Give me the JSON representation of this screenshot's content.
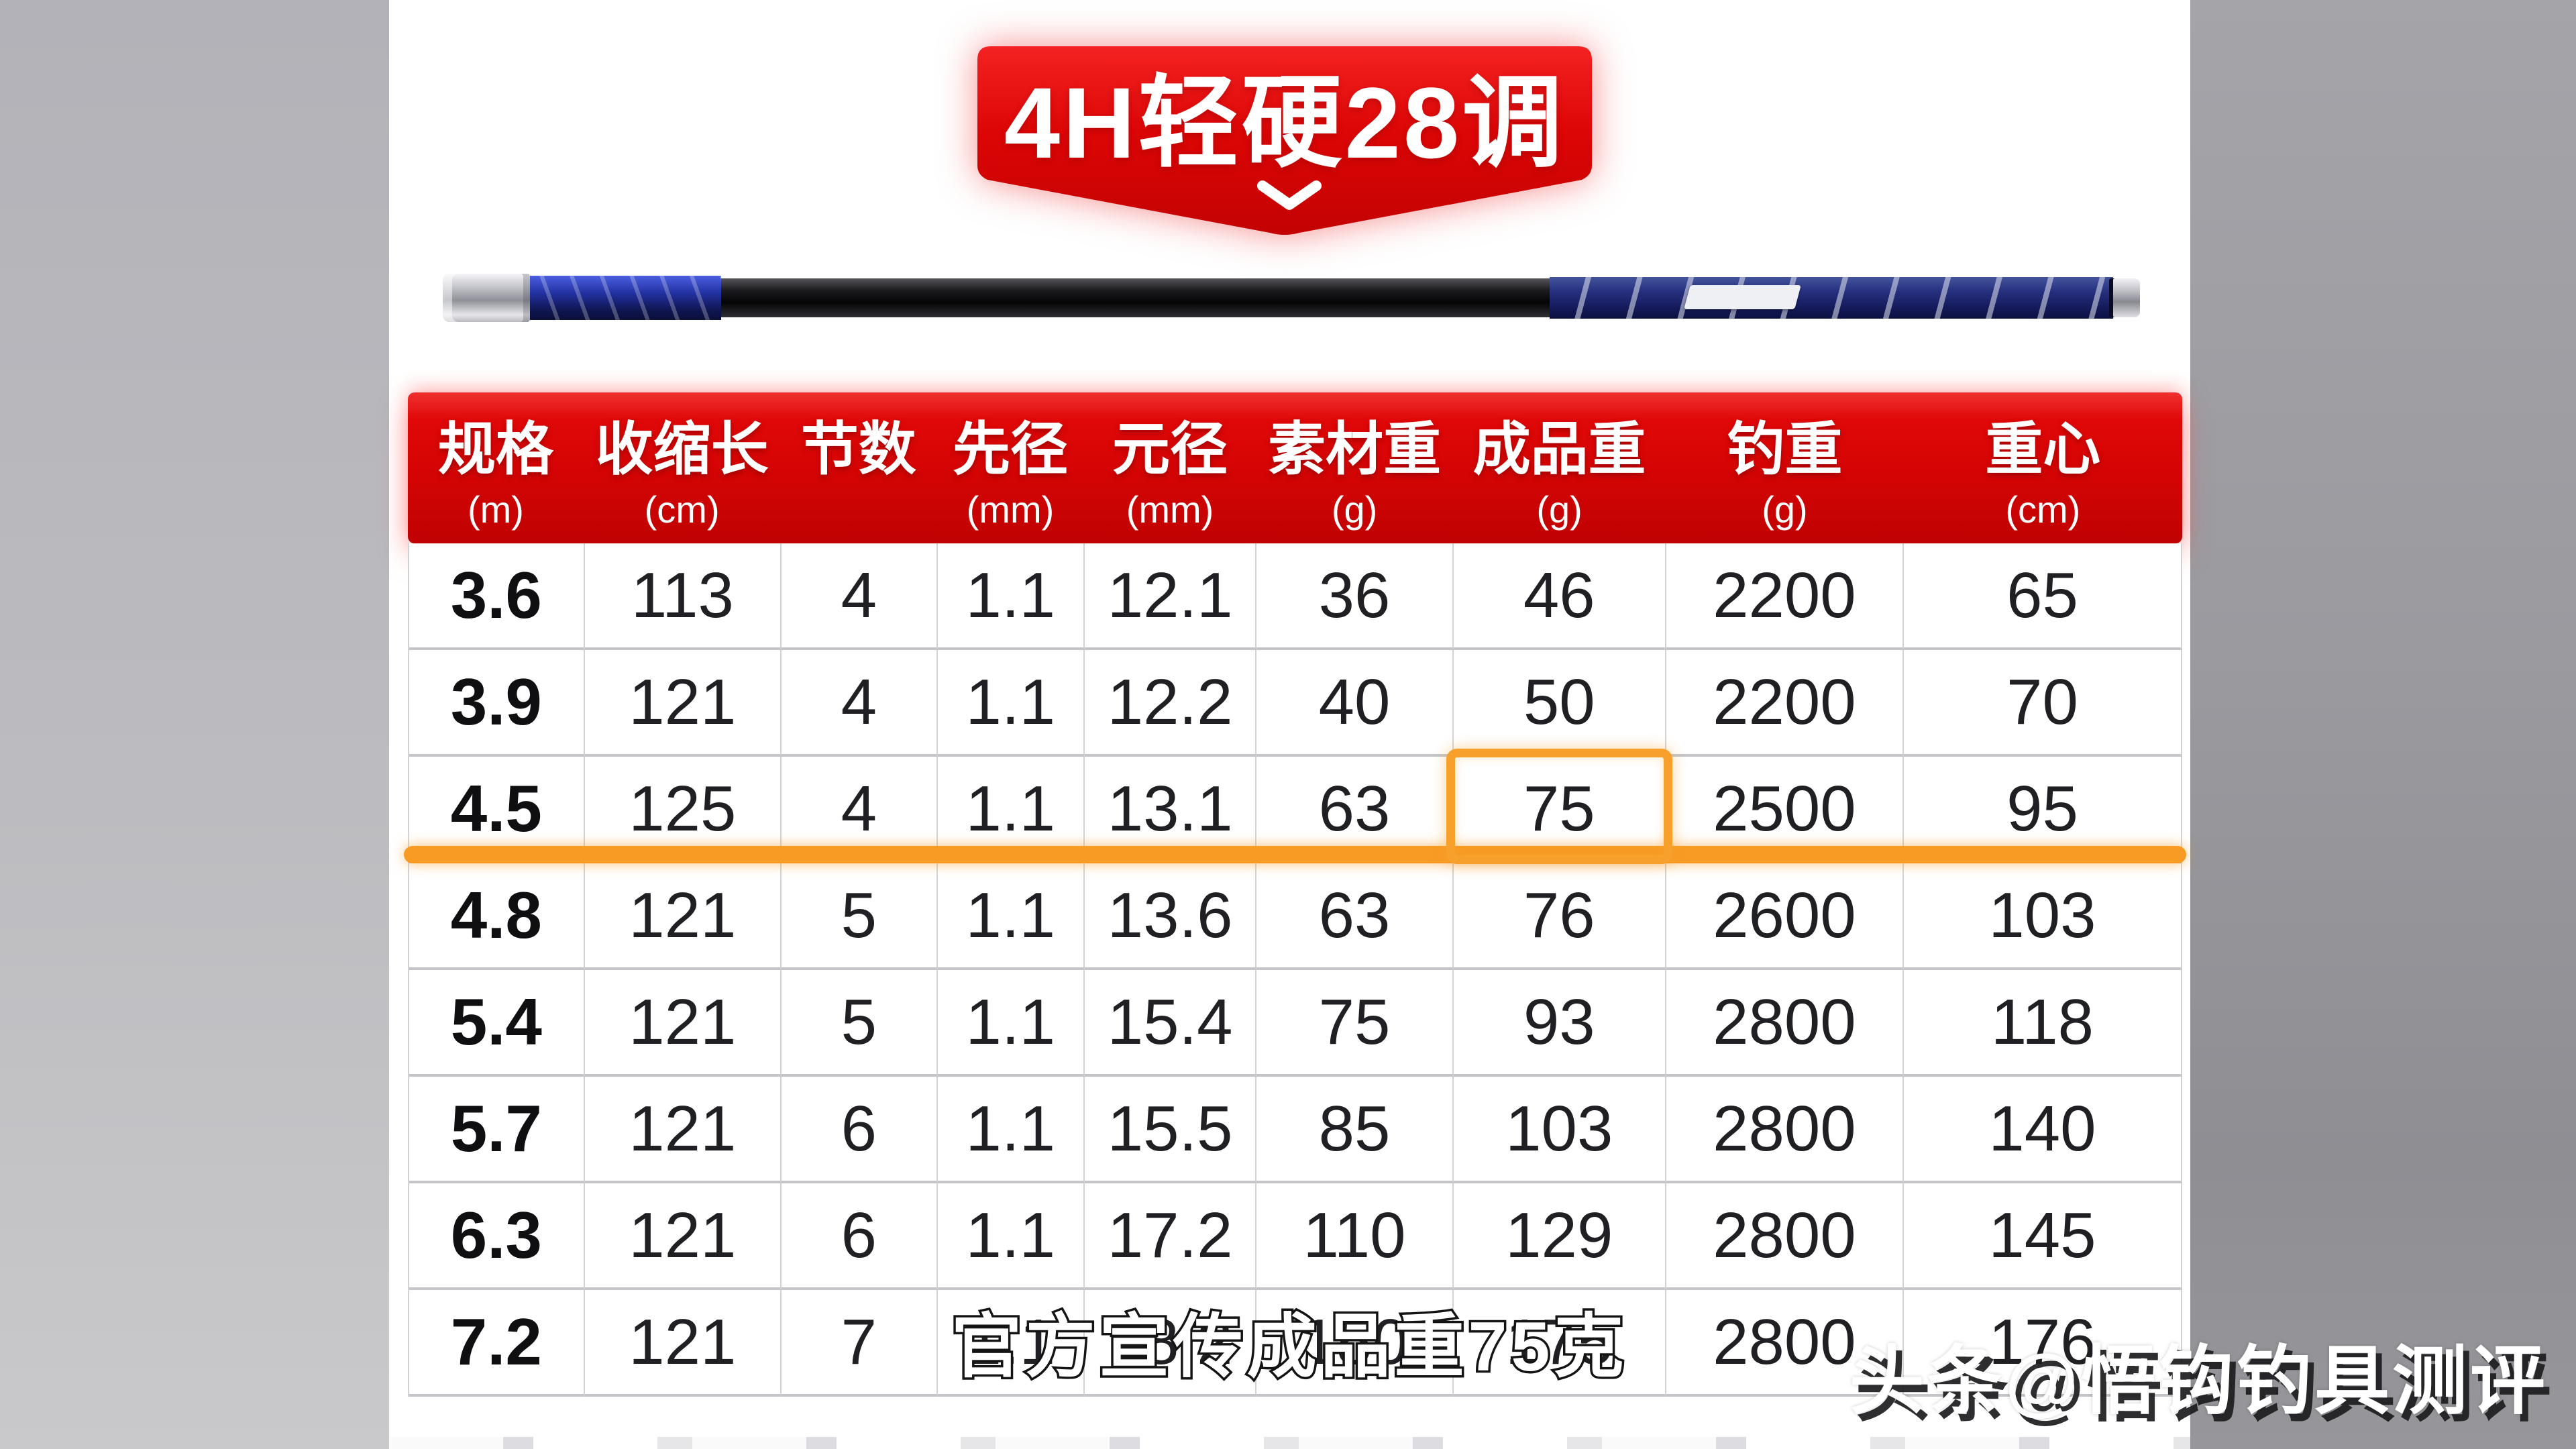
{
  "badge": {
    "title": "4H轻硬28调"
  },
  "table": {
    "columns": [
      {
        "key": "spec",
        "label": "规格",
        "unit": "(m)"
      },
      {
        "key": "closed-length",
        "label": "收缩长",
        "unit": "(cm)"
      },
      {
        "key": "sections",
        "label": "节数",
        "unit": ""
      },
      {
        "key": "tip-diameter",
        "label": "先径",
        "unit": "(mm)"
      },
      {
        "key": "butt-diameter",
        "label": "元径",
        "unit": "(mm)"
      },
      {
        "key": "blank-weight",
        "label": "素材重",
        "unit": "(g)"
      },
      {
        "key": "finished-weight",
        "label": "成品重",
        "unit": "(g)"
      },
      {
        "key": "load-weight",
        "label": "钓重",
        "unit": "(g)"
      },
      {
        "key": "balance-point",
        "label": "重心",
        "unit": "(cm)"
      }
    ],
    "rows": [
      [
        "3.6",
        "113",
        "4",
        "1.1",
        "12.1",
        "36",
        "46",
        "2200",
        "65"
      ],
      [
        "3.9",
        "121",
        "4",
        "1.1",
        "12.2",
        "40",
        "50",
        "2200",
        "70"
      ],
      [
        "4.5",
        "125",
        "4",
        "1.1",
        "13.1",
        "63",
        "75",
        "2500",
        "95"
      ],
      [
        "4.8",
        "121",
        "5",
        "1.1",
        "13.6",
        "63",
        "76",
        "2600",
        "103"
      ],
      [
        "5.4",
        "121",
        "5",
        "1.1",
        "15.4",
        "75",
        "93",
        "2800",
        "118"
      ],
      [
        "5.7",
        "121",
        "6",
        "1.1",
        "15.5",
        "85",
        "103",
        "2800",
        "140"
      ],
      [
        "6.3",
        "121",
        "6",
        "1.1",
        "17.2",
        "110",
        "129",
        "2800",
        "145"
      ],
      [
        "7.2",
        "121",
        "7",
        "1.1",
        "18.2",
        "150",
        "175",
        "2800",
        "176"
      ]
    ],
    "highlight": {
      "row_spec": "4.5",
      "column": "成品重",
      "value": "75"
    }
  },
  "overlay": {
    "subtitle": "官方宣传成品重75克",
    "watermark": "头条@悟钩钓具测评"
  },
  "colors": {
    "banner_red": "#e00808",
    "header_red_top": "#f03030",
    "header_red_bottom": "#bf0202",
    "highlight_orange": "#f79b24",
    "margin_gray": "#9a9a9f"
  },
  "chart_data": {
    "type": "table",
    "title": "4H轻硬28调",
    "columns": [
      "规格(m)",
      "收缩长(cm)",
      "节数",
      "先径(mm)",
      "元径(mm)",
      "素材重(g)",
      "成品重(g)",
      "钓重(g)",
      "重心(cm)"
    ],
    "rows": [
      [
        "3.6",
        "113",
        "4",
        "1.1",
        "12.1",
        "36",
        "46",
        "2200",
        "65"
      ],
      [
        "3.9",
        "121",
        "4",
        "1.1",
        "12.2",
        "40",
        "50",
        "2200",
        "70"
      ],
      [
        "4.5",
        "125",
        "4",
        "1.1",
        "13.1",
        "63",
        "75",
        "2500",
        "95"
      ],
      [
        "4.8",
        "121",
        "5",
        "1.1",
        "13.6",
        "63",
        "76",
        "2600",
        "103"
      ],
      [
        "5.4",
        "121",
        "5",
        "1.1",
        "15.4",
        "75",
        "93",
        "2800",
        "118"
      ],
      [
        "5.7",
        "121",
        "6",
        "1.1",
        "15.5",
        "85",
        "103",
        "2800",
        "140"
      ],
      [
        "6.3",
        "121",
        "6",
        "1.1",
        "17.2",
        "110",
        "129",
        "2800",
        "145"
      ],
      [
        "7.2",
        "121",
        "7",
        "1.1",
        "18.2",
        "150",
        "175",
        "2800",
        "176"
      ]
    ]
  }
}
